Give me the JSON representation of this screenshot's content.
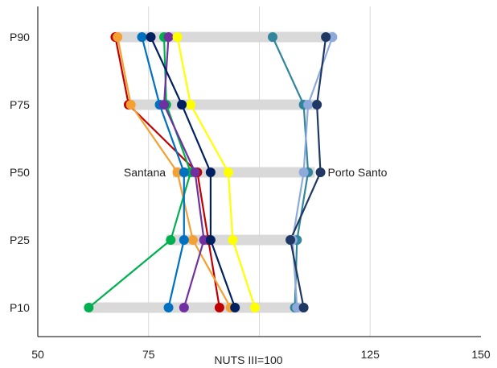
{
  "chart_data": {
    "type": "line",
    "title": "",
    "xlabel": "NUTS III=100",
    "ylabel": "",
    "xlim": [
      50,
      150
    ],
    "x_ticks": [
      50,
      75,
      125,
      150
    ],
    "gridlines_x": [
      75,
      100,
      125
    ],
    "categories": [
      "P90",
      "P75",
      "P50",
      "P25",
      "P10"
    ],
    "range_bars": [
      {
        "category": "P90",
        "min": 67.5,
        "max": 117
      },
      {
        "category": "P75",
        "min": 70.5,
        "max": 113.5
      },
      {
        "category": "P50",
        "min": 80.5,
        "max": 112.5
      },
      {
        "category": "P25",
        "min": 79,
        "max": 109
      },
      {
        "category": "P10",
        "min": 61.5,
        "max": 110
      }
    ],
    "annotations": [
      {
        "text": "Santana",
        "category": "P50",
        "x": 80.5,
        "anchor": "end"
      },
      {
        "text": "Porto Santo",
        "category": "P50",
        "x": 113.8,
        "anchor": "start"
      }
    ],
    "series": [
      {
        "color": "#c00000",
        "values": [
          67.5,
          70.5,
          86,
          88.5,
          91
        ]
      },
      {
        "color": "#f5a033",
        "values": [
          68,
          71,
          81.5,
          85,
          93.5
        ]
      },
      {
        "color": "#00b050",
        "values": [
          78.5,
          79,
          84.5,
          80,
          61.5
        ]
      },
      {
        "color": "#0070c0",
        "values": [
          73.5,
          77.5,
          83,
          83,
          79.5
        ]
      },
      {
        "color": "#7030a0",
        "values": [
          79.5,
          78.5,
          85.5,
          87.5,
          83
        ]
      },
      {
        "color": "#ffff00",
        "values": [
          81.5,
          84.5,
          93,
          94,
          99
        ]
      },
      {
        "color": "#002060",
        "values": [
          75.5,
          82.5,
          89,
          89,
          94.5
        ]
      },
      {
        "color": "#31859c",
        "values": [
          103,
          110,
          111,
          108.5,
          108
        ]
      },
      {
        "color": "#8eaadb",
        "values": [
          116.5,
          111,
          110,
          107.5,
          108.5
        ]
      },
      {
        "color": "#1f3864",
        "values": [
          115,
          113,
          113.8,
          107,
          110
        ]
      }
    ]
  }
}
